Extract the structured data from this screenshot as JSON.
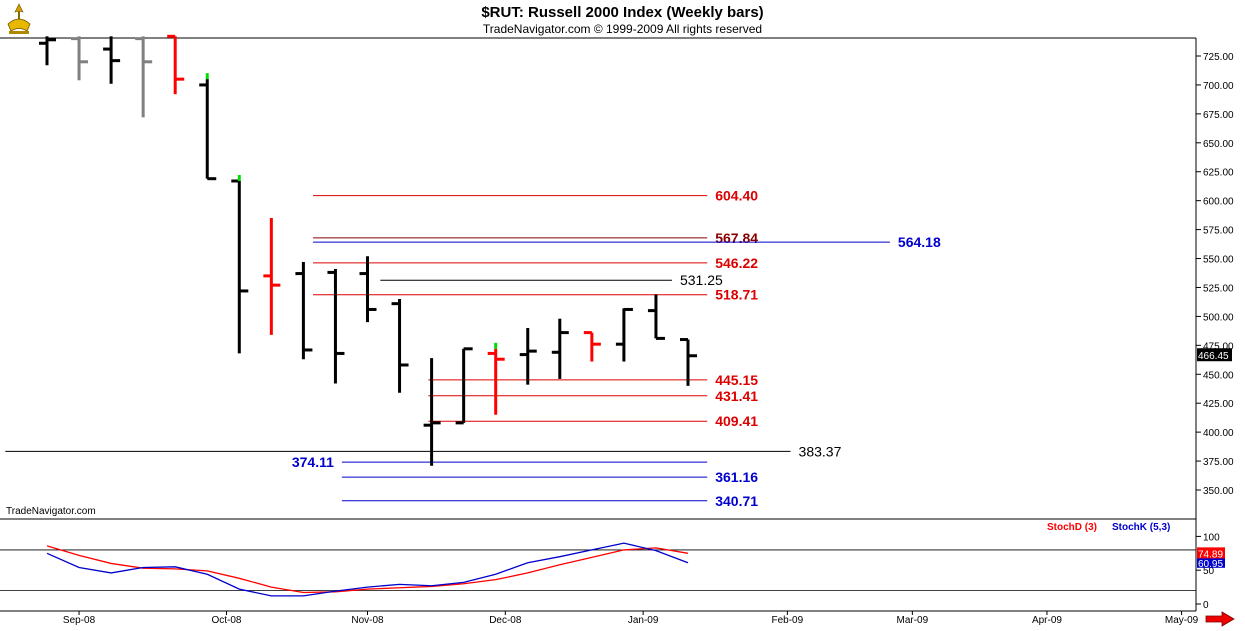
{
  "header": {
    "title": "$RUT:  Russell 2000 Index  (Weekly bars)",
    "subtitle": "TradeNavigator.com © 1999-2009 All rights reserved"
  },
  "watermark": "TradeNavigator.com",
  "icons": {
    "logo": "trade-navigator-logo-icon",
    "scroll": "red-right-arrow-icon"
  },
  "colors": {
    "up_bar": "#000000",
    "reversal_bar": "#ff0000",
    "neutral_bar": "#808080",
    "signal_tick": "#00dd00",
    "fib_red": "#dd0000",
    "fib_blue": "#0000cc",
    "fib_black": "#000000",
    "stoch_d": "#ff0000",
    "stoch_k": "#0000cc"
  },
  "chart_data": [
    {
      "type": "ohlc",
      "price_axis": {
        "ylim": [
          327,
          742
        ],
        "ticks": [
          "725.00",
          "700.00",
          "675.00",
          "650.00",
          "625.00",
          "600.00",
          "575.00",
          "550.00",
          "525.00",
          "500.00",
          "475.00",
          "450.00",
          "425.00",
          "400.00",
          "375.00",
          "350.00"
        ]
      },
      "last_price_label": "466.45",
      "x_axis": {
        "months": [
          {
            "label": "Sep-08",
            "week": 1
          },
          {
            "label": "Oct-08",
            "week": 5.6
          },
          {
            "label": "Nov-08",
            "week": 10
          },
          {
            "label": "Dec-08",
            "week": 14.3
          },
          {
            "label": "Jan-09",
            "week": 18.6
          },
          {
            "label": "Feb-09",
            "week": 23.1
          },
          {
            "label": "Mar-09",
            "week": 27
          },
          {
            "label": "Apr-09",
            "week": 31.2
          },
          {
            "label": "May-09",
            "week": 35.4
          }
        ]
      },
      "bars": [
        {
          "week": 0,
          "o": 736,
          "h": 742,
          "l": 717,
          "c": 739,
          "color": "black"
        },
        {
          "week": 1,
          "o": 740,
          "h": 742,
          "l": 704,
          "c": 720,
          "color": "gray"
        },
        {
          "week": 2,
          "o": 731,
          "h": 742,
          "l": 701,
          "c": 721,
          "color": "black"
        },
        {
          "week": 3,
          "o": 740,
          "h": 742,
          "l": 672,
          "c": 720,
          "color": "gray"
        },
        {
          "week": 4,
          "o": 742,
          "h": 742,
          "l": 692,
          "c": 705,
          "color": "red"
        },
        {
          "week": 5,
          "o": 700,
          "h": 705,
          "l": 619,
          "c": 619,
          "color": "black",
          "signal": true
        },
        {
          "week": 6,
          "o": 617,
          "h": 617,
          "l": 468,
          "c": 522,
          "color": "black",
          "signal": true
        },
        {
          "week": 7,
          "o": 535,
          "h": 585,
          "l": 484,
          "c": 527,
          "color": "red"
        },
        {
          "week": 8,
          "o": 537,
          "h": 547,
          "l": 463,
          "c": 471,
          "color": "black"
        },
        {
          "week": 9,
          "o": 538,
          "h": 541,
          "l": 442,
          "c": 468,
          "color": "black"
        },
        {
          "week": 10,
          "o": 537,
          "h": 552,
          "l": 495,
          "c": 506,
          "color": "black"
        },
        {
          "week": 11,
          "o": 511,
          "h": 515,
          "l": 434,
          "c": 458,
          "color": "black"
        },
        {
          "week": 12,
          "o": 406,
          "h": 464,
          "l": 371,
          "c": 408,
          "color": "black"
        },
        {
          "week": 13,
          "o": 408,
          "h": 472,
          "l": 408,
          "c": 472,
          "color": "black"
        },
        {
          "week": 14,
          "o": 468,
          "h": 472,
          "l": 415,
          "c": 463,
          "color": "red",
          "signal": true
        },
        {
          "week": 15,
          "o": 467,
          "h": 490,
          "l": 441,
          "c": 470,
          "color": "black"
        },
        {
          "week": 16,
          "o": 469,
          "h": 498,
          "l": 446,
          "c": 486,
          "color": "black"
        },
        {
          "week": 17,
          "o": 486,
          "h": 486,
          "l": 461,
          "c": 476,
          "color": "red"
        },
        {
          "week": 18,
          "o": 476,
          "h": 507,
          "l": 461,
          "c": 506,
          "color": "black"
        },
        {
          "week": 19,
          "o": 505,
          "h": 519,
          "l": 481,
          "c": 481,
          "color": "black"
        },
        {
          "week": 20,
          "o": 480,
          "h": 480,
          "l": 440,
          "c": 466,
          "color": "black"
        }
      ],
      "levels": [
        {
          "label": "604.40",
          "value": 604.4,
          "color": "red",
          "x0": 8.3,
          "x1": 20.6,
          "label_pos": "right",
          "bold": true
        },
        {
          "label": "567.84",
          "value": 567.84,
          "color": "darkred",
          "x0": 8.3,
          "x1": 20.6,
          "label_pos": "right",
          "bold": true
        },
        {
          "label": "564.18",
          "value": 564.18,
          "color": "blue",
          "x0": 8.3,
          "x1": 26.3,
          "label_pos": "right",
          "bold": true
        },
        {
          "label": "546.22",
          "value": 546.22,
          "color": "red",
          "x0": 8.3,
          "x1": 20.6,
          "label_pos": "right",
          "bold": true
        },
        {
          "label": "531.25",
          "value": 531.25,
          "color": "black",
          "x0": 10.4,
          "x1": 19.5,
          "label_pos": "right",
          "bold": false
        },
        {
          "label": "518.71",
          "value": 518.71,
          "color": "red",
          "x0": 8.3,
          "x1": 20.6,
          "label_pos": "right",
          "bold": true
        },
        {
          "label": "445.15",
          "value": 445.15,
          "color": "red",
          "x0": 11.9,
          "x1": 20.6,
          "label_pos": "right",
          "bold": true
        },
        {
          "label": "431.41",
          "value": 431.41,
          "color": "red",
          "x0": 11.9,
          "x1": 20.6,
          "label_pos": "right",
          "bold": true
        },
        {
          "label": "409.41",
          "value": 409.41,
          "color": "red",
          "x0": 11.9,
          "x1": 20.6,
          "label_pos": "right",
          "bold": true
        },
        {
          "label": "383.37",
          "value": 383.37,
          "color": "black",
          "x0": -1.3,
          "x1": 23.2,
          "label_pos": "right",
          "bold": false
        },
        {
          "label": "374.11",
          "value": 374.11,
          "color": "blue",
          "x0": 9.2,
          "x1": 20.6,
          "label_pos": "left",
          "bold": true
        },
        {
          "label": "361.16",
          "value": 361.16,
          "color": "blue",
          "x0": 9.2,
          "x1": 20.6,
          "label_pos": "right",
          "bold": true
        },
        {
          "label": "340.71",
          "value": 340.71,
          "color": "blue",
          "x0": 9.2,
          "x1": 20.6,
          "label_pos": "right",
          "bold": true
        }
      ]
    },
    {
      "type": "line",
      "ylim": [
        -5,
        122
      ],
      "ticks": [
        "100",
        "50",
        "0"
      ],
      "reference_lines": [
        80,
        20
      ],
      "legend": [
        {
          "name": "StochD (3)",
          "color": "red"
        },
        {
          "name": "StochK (5,3)",
          "color": "blue"
        }
      ],
      "last_value_labels": {
        "d": "74.89",
        "k": "60.95"
      },
      "x": [
        0,
        1,
        2,
        3,
        4,
        5,
        6,
        7,
        8,
        9,
        10,
        11,
        12,
        13,
        14,
        15,
        16,
        17,
        18,
        19,
        20
      ],
      "series": [
        {
          "name": "StochD (3)",
          "color": "red",
          "values": [
            86,
            72,
            60,
            53,
            52,
            49,
            38,
            25,
            17,
            18,
            22,
            24,
            26,
            30,
            36,
            46,
            58,
            69,
            80,
            83,
            75
          ]
        },
        {
          "name": "StochK (5,3)",
          "color": "blue",
          "values": [
            75,
            54,
            46,
            54,
            55,
            44,
            22,
            12,
            12,
            19,
            25,
            29,
            27,
            32,
            44,
            61,
            70,
            80,
            90,
            79,
            61
          ]
        }
      ]
    }
  ]
}
